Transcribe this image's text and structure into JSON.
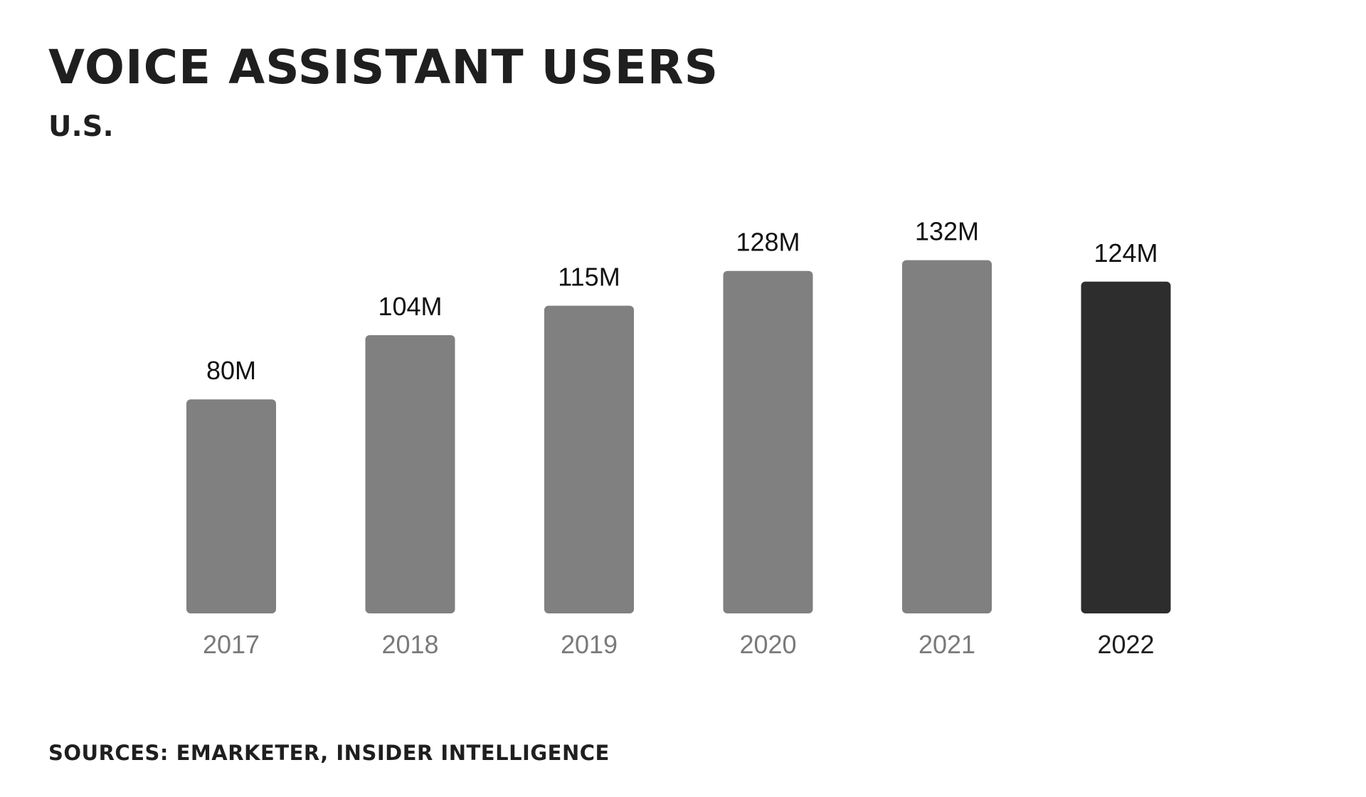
{
  "header": {
    "title": "VOICE ASSISTANT USERS",
    "subtitle": "U.S."
  },
  "footer": {
    "source": "SOURCES: EMARKETER, INSIDER INTELLIGENCE"
  },
  "chart_data": {
    "type": "bar",
    "title": "VOICE ASSISTANT USERS",
    "subtitle": "U.S.",
    "categories": [
      "2017",
      "2018",
      "2019",
      "2020",
      "2021",
      "2022"
    ],
    "values": [
      80,
      104,
      115,
      128,
      132,
      124
    ],
    "value_labels": [
      "80M",
      "104M",
      "115M",
      "128M",
      "132M",
      "124M"
    ],
    "highlight_index": 5,
    "colors": {
      "bar": "#808080",
      "bar_highlight": "#2d2d2d",
      "category_label": "#7a7a7a",
      "category_label_highlight": "#1f1f1f"
    },
    "grid": false,
    "legend": "none"
  }
}
